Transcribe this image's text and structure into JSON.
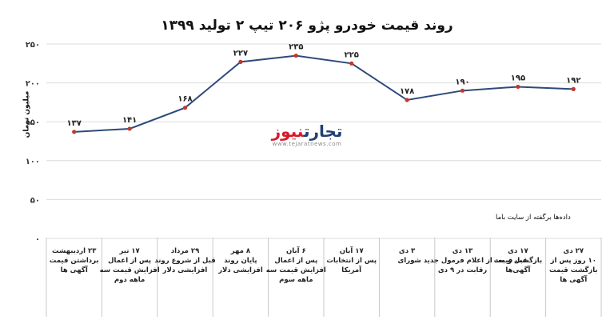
{
  "chart_data": {
    "type": "line",
    "title": "روند قیمت خودرو پژو ۲۰۶ تیپ ۲ تولید ۱۳۹۹",
    "ylabel": "میلیون تومان",
    "ylim": [
      0,
      250
    ],
    "yticks": [
      0,
      50,
      100,
      150,
      200,
      250
    ],
    "ytick_labels": [
      "۰",
      "۵۰",
      "۱۰۰",
      "۱۵۰",
      "۲۰۰",
      "۲۵۰"
    ],
    "grid": true,
    "series": [
      {
        "color": "#2e4a7a",
        "values": [
          137,
          141,
          168,
          227,
          235,
          225,
          178,
          190,
          195,
          192
        ],
        "labels": [
          "۱۳۷",
          "۱۴۱",
          "۱۶۸",
          "۲۲۷",
          "۲۳۵",
          "۲۲۵",
          "۱۷۸",
          "۱۹۰",
          "۱۹۵",
          "۱۹۲"
        ]
      }
    ],
    "categories": [
      "۲۳ اردیبهشت | برداشتن قیمت | آگهی ها",
      "۱۷ تیر | پس از اعمال | افزایش قیمت سه | ماهه دوم",
      "۲۹ مرداد | قبل از شروع روند | افزایشی دلار",
      "۸ مهر | پایان روند | افزایشی دلار",
      "۶ آبان | پس از اعمال | افزایش قیمت سه | ماهه سوم",
      "۱۷ آبان | پس از انتخابات | آمریکا",
      "۳ دی",
      "۱۳ دی | قبل و بعد از اعلام فرمول جدید شورای | رقابت در ۹ دی",
      "۱۷ دی | بازگشت قیمت | آگهی‌ها",
      "۲۷ دی | ۱۰ روز پس از | بازگشت قیمت | آگهی ها"
    ],
    "marker_color": "#c0392b",
    "source_note": "داده‌ها برگفته از سایت باما"
  },
  "watermark": {
    "logo_part1": "تجارت",
    "logo_part2": "نیوز",
    "url": "www.tejaratnews.com"
  }
}
